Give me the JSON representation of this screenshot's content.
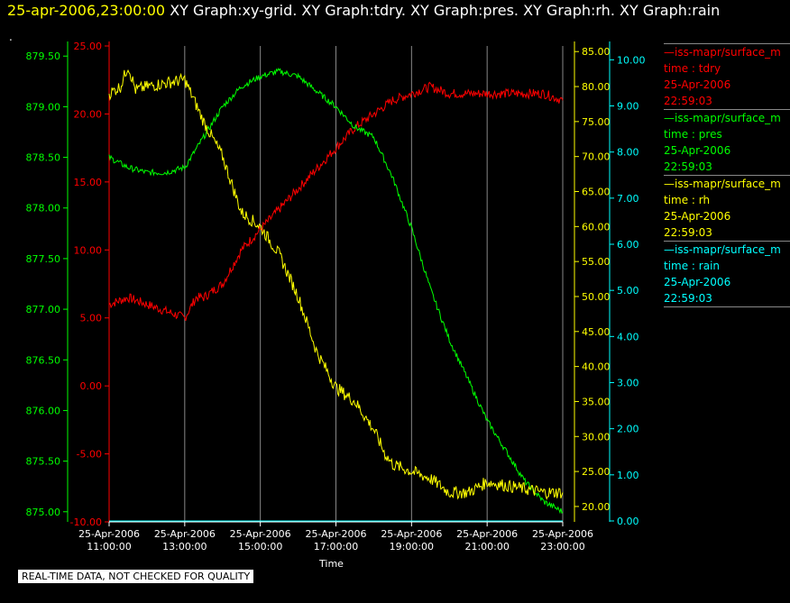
{
  "header": {
    "timestamp": "25-apr-2006,23:00:00",
    "graphs": "XY Graph:xy-grid.  XY Graph:tdry.  XY Graph:pres.  XY Graph:rh.  XY Graph:rain",
    "dot": "."
  },
  "disclaimer": "REAL-TIME DATA, NOT CHECKED FOR QUALITY",
  "colors": {
    "tdry": "#ff0000",
    "pres": "#00ff00",
    "rh": "#ffff00",
    "rain": "#00ffff",
    "grid": "#888888"
  },
  "legend": [
    {
      "series": "tdry",
      "name": "—iss-mapr/surface_m",
      "var": "time : tdry",
      "date": "25-Apr-2006",
      "time": "22:59:03"
    },
    {
      "series": "pres",
      "name": "—iss-mapr/surface_m",
      "var": "time : pres",
      "date": "25-Apr-2006",
      "time": "22:59:03"
    },
    {
      "series": "rh",
      "name": "—iss-mapr/surface_m",
      "var": "time : rh",
      "date": "25-Apr-2006",
      "time": "22:59:03"
    },
    {
      "series": "rain",
      "name": "—iss-mapr/surface_m",
      "var": "time : rain",
      "date": "25-Apr-2006",
      "time": "22:59:03"
    }
  ],
  "chart_data": {
    "type": "line",
    "xlabel": "Time",
    "x_ticks": [
      [
        "25-Apr-2006",
        "11:00:00"
      ],
      [
        "25-Apr-2006",
        "13:00:00"
      ],
      [
        "25-Apr-2006",
        "15:00:00"
      ],
      [
        "25-Apr-2006",
        "17:00:00"
      ],
      [
        "25-Apr-2006",
        "19:00:00"
      ],
      [
        "25-Apr-2006",
        "21:00:00"
      ],
      [
        "25-Apr-2006",
        "23:00:00"
      ]
    ],
    "x_hours": [
      11,
      13,
      15,
      17,
      19,
      21,
      23
    ],
    "xlim": [
      11,
      23
    ],
    "grid": true,
    "axes": {
      "tdry": {
        "ylim": [
          -10,
          25
        ],
        "ticks": [
          "-10.00",
          "-5.00",
          "0.00",
          "5.00",
          "10.00",
          "15.00",
          "20.00",
          "25.00"
        ]
      },
      "pres": {
        "ylim": [
          874.9,
          879.6
        ],
        "ticks": [
          "875.00",
          "875.50",
          "876.00",
          "876.50",
          "877.00",
          "877.50",
          "878.00",
          "878.50",
          "879.00",
          "879.50"
        ]
      },
      "rh": {
        "ylim": [
          17.8,
          85.8
        ],
        "ticks": [
          "20.00",
          "25.00",
          "30.00",
          "35.00",
          "40.00",
          "45.00",
          "50.00",
          "55.00",
          "60.00",
          "65.00",
          "70.00",
          "75.00",
          "80.00",
          "85.00"
        ]
      },
      "rain": {
        "ylim": [
          -0.02,
          10.3
        ],
        "ticks": [
          "0.00",
          "1.00",
          "2.00",
          "3.00",
          "4.00",
          "5.00",
          "6.00",
          "7.00",
          "8.00",
          "9.00",
          "10.00"
        ]
      }
    },
    "series": [
      {
        "name": "tdry",
        "axis": "tdry",
        "x": [
          11.0,
          11.5,
          12.0,
          12.5,
          13.0,
          13.3,
          13.5,
          14.0,
          14.5,
          15.0,
          15.5,
          16.0,
          16.5,
          17.0,
          17.5,
          18.0,
          18.5,
          19.0,
          19.5,
          20.0,
          20.5,
          21.0,
          21.5,
          22.0,
          22.5,
          23.0
        ],
        "y": [
          6.0,
          6.5,
          6.0,
          5.5,
          5.0,
          6.5,
          6.5,
          7.5,
          10.0,
          11.5,
          13.0,
          14.5,
          16.0,
          17.5,
          19.0,
          20.0,
          21.0,
          21.5,
          22.0,
          21.5,
          21.5,
          21.5,
          21.5,
          21.5,
          21.5,
          21.0
        ]
      },
      {
        "name": "pres",
        "axis": "pres",
        "x": [
          11.0,
          11.5,
          12.0,
          12.5,
          13.0,
          13.5,
          14.0,
          14.5,
          15.0,
          15.5,
          16.0,
          16.5,
          17.0,
          17.5,
          18.0,
          18.5,
          19.0,
          19.5,
          20.0,
          20.5,
          21.0,
          21.5,
          22.0,
          22.5,
          23.0
        ],
        "y": [
          878.5,
          878.4,
          878.35,
          878.35,
          878.4,
          878.7,
          879.0,
          879.2,
          879.3,
          879.35,
          879.3,
          879.15,
          879.0,
          878.8,
          878.7,
          878.3,
          877.8,
          877.2,
          876.7,
          876.3,
          875.9,
          875.6,
          875.3,
          875.1,
          875.0
        ]
      },
      {
        "name": "rh",
        "axis": "rh",
        "x": [
          11.0,
          11.3,
          11.5,
          11.7,
          12.0,
          12.5,
          13.0,
          13.5,
          14.0,
          14.5,
          15.0,
          15.5,
          16.0,
          16.5,
          17.0,
          17.5,
          18.0,
          18.3,
          18.5,
          19.0,
          19.5,
          20.0,
          20.5,
          21.0,
          21.5,
          22.0,
          22.5,
          23.0
        ],
        "y": [
          79.0,
          80.0,
          83.0,
          79.5,
          80.0,
          80.5,
          81.0,
          75.0,
          70.0,
          62.0,
          60.0,
          56.0,
          50.0,
          42.0,
          37.0,
          35.0,
          31.0,
          27.5,
          26.0,
          25.0,
          24.0,
          22.0,
          22.0,
          23.5,
          23.0,
          22.5,
          22.0,
          22.0
        ]
      },
      {
        "name": "rain",
        "axis": "rain",
        "x": [
          11,
          23
        ],
        "y": [
          0.0,
          0.0
        ]
      }
    ]
  }
}
